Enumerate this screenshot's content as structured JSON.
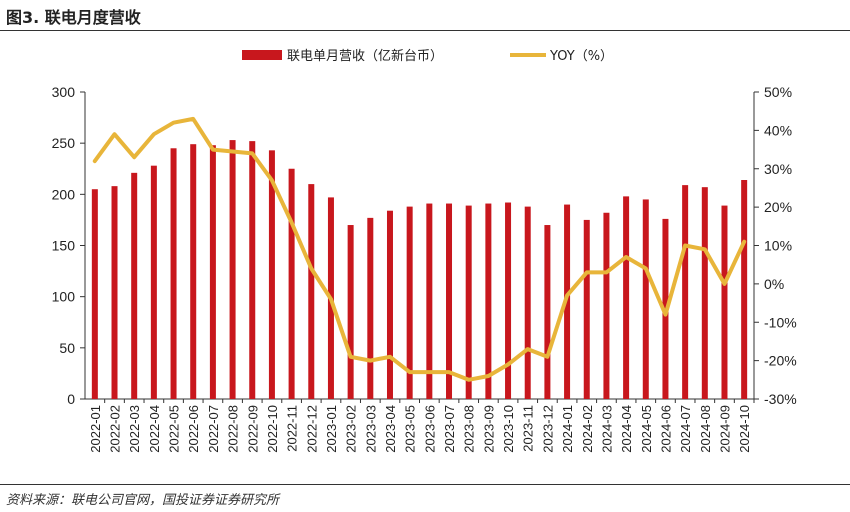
{
  "figure_title": "图3. 联电月度营收",
  "source": "资料来源：联电公司官网，国投证券证券研究所",
  "colors": {
    "bar": "#C8171D",
    "line": "#E8B53A",
    "axis": "#333333"
  },
  "chart_data": {
    "type": "bar",
    "title": "",
    "categories": [
      "2022-01",
      "2022-02",
      "2022-03",
      "2022-04",
      "2022-05",
      "2022-06",
      "2022-07",
      "2022-08",
      "2022-09",
      "2022-10",
      "2022-11",
      "2022-12",
      "2023-01",
      "2023-02",
      "2023-03",
      "2023-04",
      "2023-05",
      "2023-06",
      "2023-07",
      "2023-08",
      "2023-09",
      "2023-10",
      "2023-11",
      "2023-12",
      "2024-01",
      "2024-02",
      "2024-03",
      "2024-04",
      "2024-05",
      "2024-06",
      "2024-07",
      "2024-08",
      "2024-09",
      "2024-10"
    ],
    "series": [
      {
        "name": "联电单月营收（亿新台币）",
        "type": "bar",
        "axis": "left",
        "values": [
          205,
          208,
          221,
          228,
          245,
          249,
          248,
          253,
          252,
          243,
          225,
          210,
          197,
          170,
          177,
          184,
          188,
          191,
          191,
          189,
          191,
          192,
          188,
          170,
          190,
          175,
          182,
          198,
          195,
          176,
          209,
          207,
          189,
          214
        ]
      },
      {
        "name": "YOY（%）",
        "type": "line",
        "axis": "right",
        "values": [
          32,
          39,
          33,
          39,
          42,
          43,
          35,
          34.5,
          34,
          27,
          16,
          4,
          -4,
          -19,
          -20,
          -19,
          -23,
          -23,
          -23,
          -25,
          -24,
          -21,
          -17,
          -19,
          -3,
          3,
          3,
          7,
          4,
          -8,
          10,
          9,
          0,
          11
        ]
      }
    ],
    "yleft": {
      "min": 0,
      "max": 300,
      "ticks": [
        "0",
        "50",
        "100",
        "150",
        "200",
        "250",
        "300"
      ]
    },
    "yright": {
      "min": -30,
      "max": 50,
      "ticks": [
        "-30%",
        "-20%",
        "-10%",
        "0%",
        "10%",
        "20%",
        "30%",
        "40%",
        "50%"
      ]
    },
    "grid": false,
    "legend_position": "top-center"
  }
}
